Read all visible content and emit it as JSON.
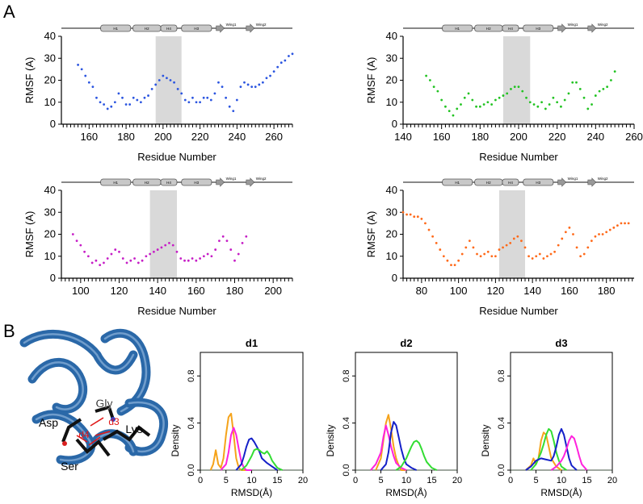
{
  "labels": {
    "panel_a": "A",
    "panel_b": "B"
  },
  "structure_labels": {
    "helices": [
      "H1",
      "H2",
      "H4",
      "H3"
    ],
    "wings": [
      "Wing1",
      "Wing2"
    ],
    "residues": [
      "Gly",
      "Asp",
      "Lys",
      "Ser"
    ],
    "distances": [
      "d3",
      "d4",
      "d1",
      "d2"
    ]
  },
  "colors": {
    "blue": "#2b55e0",
    "green": "#22c322",
    "magenta": "#c61ec6",
    "orange": "#ff6a1a",
    "density_orange": "#f5a31a",
    "density_magenta": "#ff22dd",
    "density_blue": "#1420c8",
    "density_green": "#33dd33",
    "shade": "#d9d9d9",
    "protein_blue": "#2a68a8"
  },
  "chart_data": [
    {
      "type": "scatter",
      "panel": "A1",
      "xlabel": "Residue Number",
      "ylabel": "RMSF (A)",
      "xlim": [
        145,
        270
      ],
      "ylim": [
        0,
        40
      ],
      "xticks": [
        160,
        180,
        200,
        220,
        240,
        260
      ],
      "yticks": [
        0,
        10,
        20,
        30,
        40
      ],
      "shaded_region": [
        196,
        210
      ],
      "color": "#2b55e0",
      "x": [
        154,
        156,
        158,
        160,
        162,
        164,
        166,
        168,
        170,
        172,
        174,
        176,
        178,
        180,
        182,
        184,
        186,
        188,
        190,
        192,
        194,
        196,
        198,
        200,
        202,
        204,
        206,
        208,
        210,
        212,
        214,
        216,
        218,
        220,
        222,
        224,
        226,
        228,
        230,
        232,
        234,
        236,
        238,
        240,
        242,
        244,
        246,
        248,
        250,
        252,
        254,
        256,
        258,
        260,
        262,
        264,
        266,
        268,
        270
      ],
      "y": [
        27,
        25,
        22,
        19,
        17,
        12,
        10,
        9,
        7,
        8,
        10,
        14,
        12,
        9,
        9,
        12,
        11,
        10,
        12,
        13,
        16,
        18,
        20,
        22,
        21,
        20,
        19,
        16,
        14,
        11,
        10,
        12,
        10,
        10,
        12,
        12,
        11,
        14,
        19,
        17,
        12,
        8,
        6,
        11,
        17,
        19,
        18,
        17,
        17,
        18,
        19,
        21,
        22,
        24,
        26,
        28,
        29,
        31,
        32
      ]
    },
    {
      "type": "scatter",
      "panel": "A2",
      "xlabel": "Residue Number",
      "ylabel": "RMSF (A)",
      "xlim": [
        140,
        260
      ],
      "ylim": [
        0,
        40
      ],
      "xticks": [
        140,
        160,
        180,
        200,
        220,
        240,
        260
      ],
      "yticks": [
        0,
        10,
        20,
        30,
        40
      ],
      "shaded_region": [
        192,
        206
      ],
      "color": "#22c322",
      "x": [
        152,
        154,
        156,
        158,
        160,
        162,
        164,
        166,
        168,
        170,
        172,
        174,
        176,
        178,
        180,
        182,
        184,
        186,
        188,
        190,
        192,
        194,
        196,
        198,
        200,
        202,
        204,
        206,
        208,
        210,
        212,
        214,
        216,
        218,
        220,
        222,
        224,
        226,
        228,
        230,
        232,
        234,
        236,
        238,
        240,
        242,
        244,
        246,
        248,
        250
      ],
      "y": [
        22,
        20,
        17,
        15,
        11,
        8,
        6,
        4,
        7,
        9,
        12,
        14,
        11,
        8,
        8,
        9,
        10,
        9,
        11,
        12,
        13,
        14,
        16,
        17,
        17,
        15,
        12,
        10,
        9,
        8,
        10,
        7,
        9,
        12,
        10,
        8,
        11,
        14,
        19,
        19,
        16,
        12,
        7,
        9,
        13,
        15,
        16,
        17,
        20,
        24
      ]
    },
    {
      "type": "scatter",
      "panel": "A3",
      "xlabel": "Residue  Number",
      "ylabel": "RMSF (A)",
      "xlim": [
        90,
        210
      ],
      "ylim": [
        0,
        40
      ],
      "xticks": [
        100,
        120,
        140,
        160,
        180,
        200
      ],
      "yticks": [
        0,
        10,
        20,
        30,
        40
      ],
      "shaded_region": [
        136,
        150
      ],
      "color": "#c61ec6",
      "x": [
        96,
        98,
        100,
        102,
        104,
        106,
        108,
        110,
        112,
        114,
        116,
        118,
        120,
        122,
        124,
        126,
        128,
        130,
        132,
        134,
        136,
        138,
        140,
        142,
        144,
        146,
        148,
        150,
        152,
        154,
        156,
        158,
        160,
        162,
        164,
        166,
        168,
        170,
        172,
        174,
        176,
        178,
        180,
        182,
        184,
        186
      ],
      "y": [
        20,
        17,
        15,
        12,
        10,
        7,
        8,
        6,
        7,
        9,
        11,
        13,
        12,
        9,
        7,
        8,
        9,
        7,
        8,
        10,
        11,
        12,
        13,
        14,
        15,
        16,
        15,
        12,
        9,
        8,
        8,
        9,
        8,
        9,
        10,
        11,
        10,
        13,
        17,
        19,
        17,
        13,
        8,
        11,
        16,
        19
      ]
    },
    {
      "type": "scatter",
      "panel": "A4",
      "xlabel": "Residue  Number",
      "ylabel": "RMSF (A)",
      "xlim": [
        70,
        195
      ],
      "ylim": [
        0,
        40
      ],
      "xticks": [
        80,
        100,
        120,
        140,
        160,
        180
      ],
      "yticks": [
        0,
        10,
        20,
        30,
        40
      ],
      "shaded_region": [
        122,
        136
      ],
      "color": "#ff6a1a",
      "x": [
        70,
        72,
        74,
        76,
        78,
        80,
        82,
        84,
        86,
        88,
        90,
        92,
        94,
        96,
        98,
        100,
        102,
        104,
        106,
        108,
        110,
        112,
        114,
        116,
        118,
        120,
        122,
        124,
        126,
        128,
        130,
        132,
        134,
        136,
        138,
        140,
        142,
        144,
        146,
        148,
        150,
        152,
        154,
        156,
        158,
        160,
        162,
        164,
        166,
        168,
        170,
        172,
        174,
        176,
        178,
        180,
        182,
        184,
        186,
        188,
        190,
        192
      ],
      "y": [
        30,
        29,
        29,
        28,
        28,
        27,
        25,
        22,
        19,
        16,
        13,
        10,
        8,
        6,
        6,
        8,
        11,
        14,
        17,
        14,
        11,
        10,
        11,
        12,
        10,
        10,
        13,
        14,
        15,
        16,
        18,
        19,
        17,
        14,
        10,
        9,
        10,
        11,
        9,
        10,
        11,
        12,
        15,
        18,
        21,
        23,
        20,
        14,
        10,
        11,
        14,
        17,
        19,
        20,
        20,
        21,
        22,
        23,
        24,
        25,
        25,
        25
      ]
    },
    {
      "type": "line",
      "panel": "B1",
      "title": "d1",
      "xlabel": "RMSD(Å)",
      "ylabel": "Density",
      "xlim": [
        0,
        20
      ],
      "ylim": [
        0,
        1.0
      ],
      "xticks": [
        0,
        5,
        10,
        15,
        20
      ],
      "yticks": [
        0.0,
        0.4,
        0.8
      ],
      "series": [
        {
          "color": "#f5a31a",
          "x": [
            2,
            2.5,
            3,
            3.5,
            4,
            4.5,
            5,
            5.5,
            6,
            6.5,
            7,
            7.5,
            8,
            8.5,
            9
          ],
          "y": [
            0,
            0.05,
            0.17,
            0.05,
            0.02,
            0.1,
            0.3,
            0.45,
            0.48,
            0.3,
            0.1,
            0.02,
            0,
            0,
            0
          ]
        },
        {
          "color": "#ff22dd",
          "x": [
            4,
            5,
            5.5,
            6,
            6.5,
            7,
            7.5,
            8,
            8.5,
            9,
            10
          ],
          "y": [
            0,
            0.05,
            0.15,
            0.3,
            0.36,
            0.3,
            0.18,
            0.07,
            0.02,
            0,
            0
          ]
        },
        {
          "color": "#1420c8",
          "x": [
            7,
            8,
            8.5,
            9,
            9.5,
            10,
            10.5,
            11,
            11.5,
            12,
            13,
            14,
            15
          ],
          "y": [
            0,
            0.05,
            0.12,
            0.2,
            0.26,
            0.27,
            0.24,
            0.2,
            0.16,
            0.1,
            0.06,
            0.03,
            0
          ]
        },
        {
          "color": "#33dd33",
          "x": [
            8,
            9,
            10,
            10.5,
            11,
            11.5,
            12,
            12.5,
            13,
            13.5,
            14,
            15,
            16
          ],
          "y": [
            0,
            0.04,
            0.12,
            0.17,
            0.18,
            0.17,
            0.15,
            0.14,
            0.16,
            0.13,
            0.08,
            0.02,
            0
          ]
        }
      ]
    },
    {
      "type": "line",
      "panel": "B2",
      "title": "d2",
      "xlabel": "RMSD(Å)",
      "ylabel": "Density",
      "xlim": [
        0,
        20
      ],
      "ylim": [
        0,
        1.0
      ],
      "xticks": [
        0,
        5,
        10,
        15,
        20
      ],
      "yticks": [
        0.0,
        0.4,
        0.8
      ],
      "series": [
        {
          "color": "#f5a31a",
          "x": [
            4,
            5,
            5.5,
            6,
            6.5,
            7,
            7.5,
            8,
            8.5,
            9,
            10
          ],
          "y": [
            0,
            0.1,
            0.25,
            0.4,
            0.47,
            0.35,
            0.2,
            0.1,
            0.04,
            0,
            0
          ]
        },
        {
          "color": "#ff22dd",
          "x": [
            3,
            4,
            5,
            5.5,
            6,
            6.5,
            7,
            7.5,
            8,
            9,
            10
          ],
          "y": [
            0,
            0.05,
            0.15,
            0.28,
            0.38,
            0.3,
            0.2,
            0.12,
            0.06,
            0.02,
            0
          ]
        },
        {
          "color": "#1420c8",
          "x": [
            5,
            6,
            6.5,
            7,
            7.5,
            8,
            8.5,
            9,
            9.5,
            10,
            11,
            12
          ],
          "y": [
            0,
            0.05,
            0.15,
            0.32,
            0.41,
            0.38,
            0.28,
            0.18,
            0.1,
            0.05,
            0.02,
            0
          ]
        },
        {
          "color": "#33dd33",
          "x": [
            8,
            9,
            10,
            10.5,
            11,
            11.5,
            12,
            12.5,
            13,
            13.5,
            14,
            15,
            16
          ],
          "y": [
            0,
            0.03,
            0.1,
            0.15,
            0.2,
            0.24,
            0.25,
            0.23,
            0.18,
            0.12,
            0.07,
            0.02,
            0
          ]
        }
      ]
    },
    {
      "type": "line",
      "panel": "B3",
      "title": "d3",
      "xlabel": "RMSD(Å)",
      "ylabel": "Density",
      "xlim": [
        0,
        20
      ],
      "ylim": [
        0,
        1.0
      ],
      "xticks": [
        0,
        5,
        10,
        15,
        20
      ],
      "yticks": [
        0.0,
        0.4,
        0.8
      ],
      "series": [
        {
          "color": "#f5a31a",
          "x": [
            3,
            4,
            4.5,
            5,
            5.5,
            6,
            6.5,
            7,
            7.5,
            8,
            9,
            10
          ],
          "y": [
            0,
            0.04,
            0.1,
            0.05,
            0.1,
            0.25,
            0.32,
            0.3,
            0.2,
            0.1,
            0.03,
            0
          ]
        },
        {
          "color": "#33dd33",
          "x": [
            4,
            5,
            6,
            6.5,
            7,
            7.5,
            8,
            8.5,
            9,
            9.5,
            10,
            11
          ],
          "y": [
            0,
            0.05,
            0.15,
            0.22,
            0.3,
            0.35,
            0.33,
            0.25,
            0.15,
            0.08,
            0.03,
            0
          ]
        },
        {
          "color": "#1420c8",
          "x": [
            3,
            4,
            5,
            6,
            7,
            8,
            8.5,
            9,
            9.5,
            10,
            10.5,
            11,
            11.5,
            12,
            13
          ],
          "y": [
            0,
            0.03,
            0.08,
            0.1,
            0.09,
            0.08,
            0.12,
            0.2,
            0.3,
            0.35,
            0.3,
            0.2,
            0.1,
            0.04,
            0
          ]
        },
        {
          "color": "#ff22dd",
          "x": [
            8,
            9,
            10,
            10.5,
            11,
            11.5,
            12,
            12.5,
            13,
            13.5,
            14,
            15
          ],
          "y": [
            0,
            0.03,
            0.08,
            0.12,
            0.18,
            0.25,
            0.29,
            0.27,
            0.2,
            0.12,
            0.05,
            0
          ]
        }
      ]
    }
  ]
}
